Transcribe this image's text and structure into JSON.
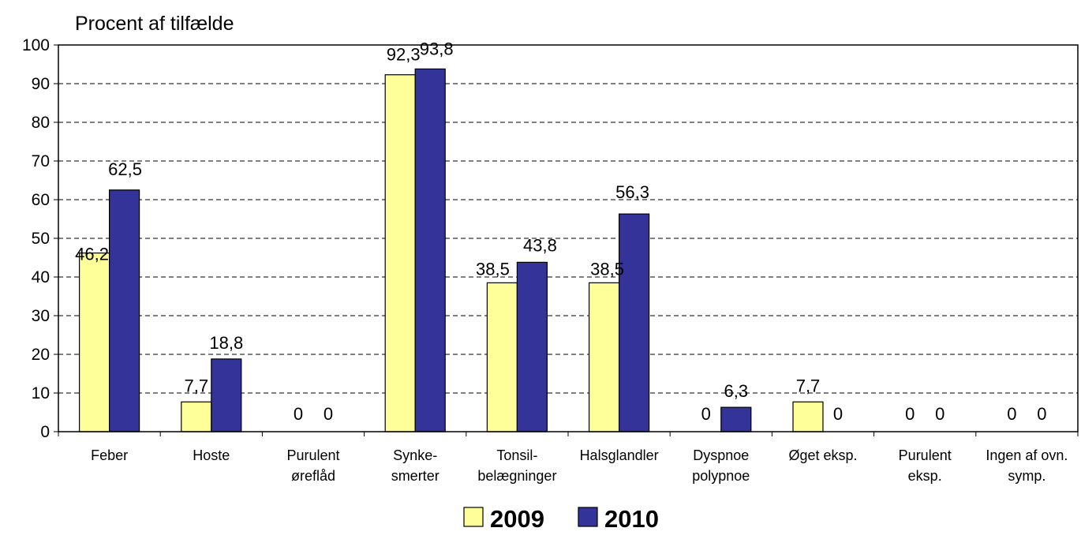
{
  "chart_data": {
    "type": "bar",
    "ylabel": "Procent af tilfælde",
    "xlabel": "",
    "ylim": [
      0,
      100
    ],
    "yticks": [
      0,
      10,
      20,
      30,
      40,
      50,
      60,
      70,
      80,
      90,
      100
    ],
    "grid": "horizontal dashed",
    "legend_position": "bottom",
    "categories": [
      [
        "Feber"
      ],
      [
        "Hoste"
      ],
      [
        "Purulent",
        "øreflåd"
      ],
      [
        "Synke-",
        "smerter"
      ],
      [
        "Tonsil-",
        "belægninger"
      ],
      [
        "Halsglandler"
      ],
      [
        "Dyspnoe",
        "polypnoe"
      ],
      [
        "Øget eksp."
      ],
      [
        "Purulent",
        "eksp."
      ],
      [
        "Ingen af ovn.",
        "symp."
      ]
    ],
    "series": [
      {
        "name": "2009",
        "color": "#FFFF99",
        "values": [
          46.2,
          7.7,
          0,
          92.3,
          38.5,
          38.5,
          0,
          7.7,
          0,
          0
        ],
        "labels": [
          "46,2",
          "7,7",
          "0",
          "92,3",
          "38,5",
          "38,5",
          "0",
          "7,7",
          "0",
          "0"
        ]
      },
      {
        "name": "2010",
        "color": "#333399",
        "values": [
          62.5,
          18.8,
          0,
          93.8,
          43.8,
          56.3,
          6.3,
          0,
          0,
          0
        ],
        "labels": [
          "62,5",
          "18,8",
          "0",
          "93,8",
          "43,8",
          "56,3",
          "6,3",
          "0",
          "0",
          "0"
        ]
      }
    ]
  }
}
